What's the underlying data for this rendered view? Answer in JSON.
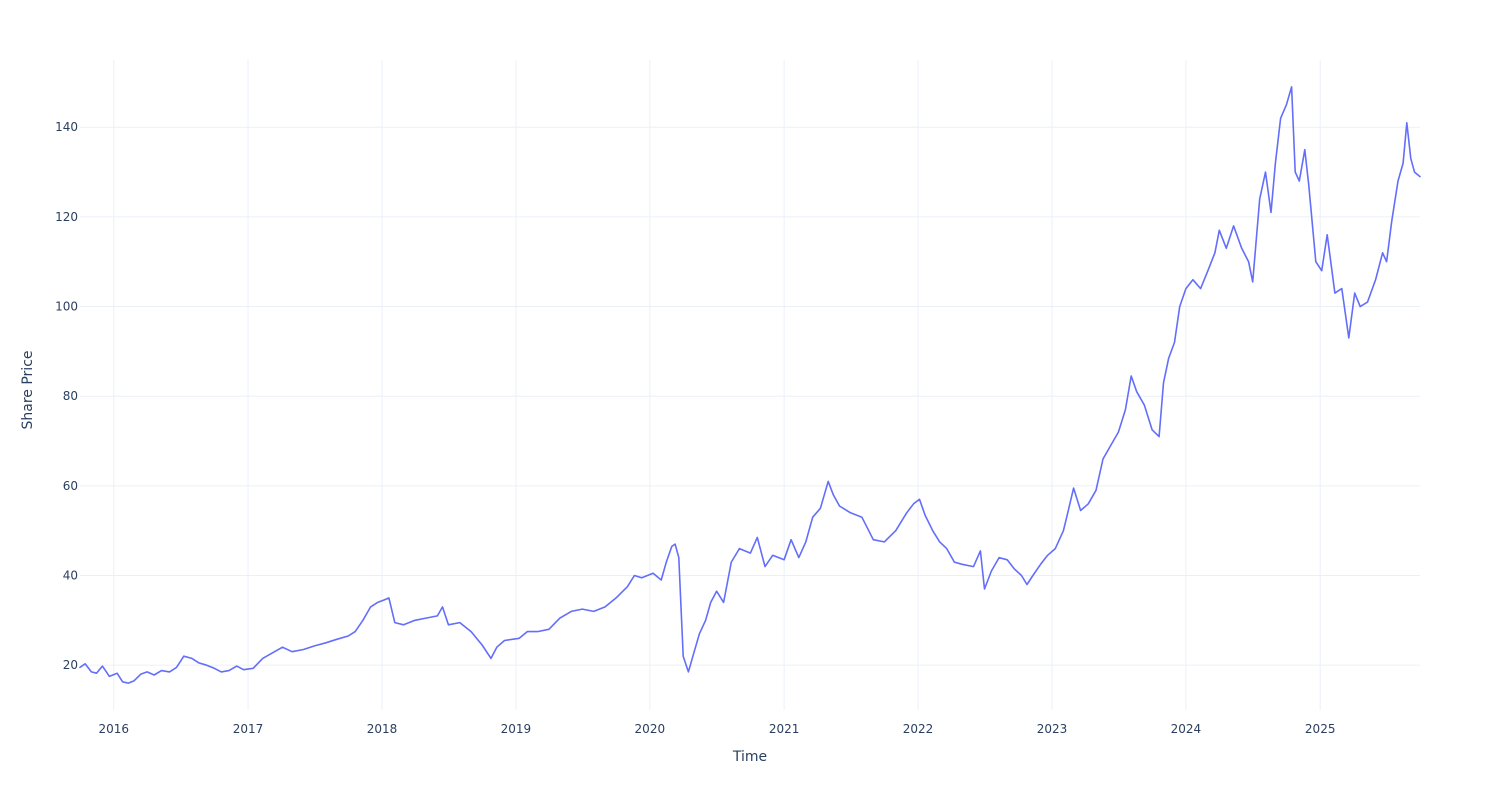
{
  "chart_data": {
    "type": "line",
    "title": "",
    "xlabel": "Time",
    "ylabel": "Share Price",
    "grid": true,
    "legend": "none",
    "line_color": "#636efa",
    "xlim": [
      "2015-10-01",
      "2025-09-30"
    ],
    "ylim": [
      10,
      155
    ],
    "y_ticks": [
      20,
      40,
      60,
      80,
      100,
      120,
      140
    ],
    "x_ticks": [
      {
        "date": "2016-01-01",
        "label": "2016"
      },
      {
        "date": "2017-01-01",
        "label": "2017"
      },
      {
        "date": "2018-01-01",
        "label": "2018"
      },
      {
        "date": "2019-01-01",
        "label": "2019"
      },
      {
        "date": "2020-01-01",
        "label": "2020"
      },
      {
        "date": "2021-01-01",
        "label": "2021"
      },
      {
        "date": "2022-01-01",
        "label": "2022"
      },
      {
        "date": "2023-01-01",
        "label": "2023"
      },
      {
        "date": "2024-01-01",
        "label": "2024"
      },
      {
        "date": "2025-01-01",
        "label": "2025"
      }
    ],
    "series": [
      {
        "x": [
          "2015-10-01",
          "2015-10-15",
          "2015-11-01",
          "2015-11-15",
          "2015-12-01",
          "2015-12-20",
          "2016-01-10",
          "2016-01-25",
          "2016-02-10",
          "2016-02-25",
          "2016-03-15",
          "2016-04-01",
          "2016-04-20",
          "2016-05-10",
          "2016-06-01",
          "2016-06-20",
          "2016-07-10",
          "2016-08-01",
          "2016-08-20",
          "2016-09-10",
          "2016-10-01",
          "2016-10-20",
          "2016-11-10",
          "2016-12-01",
          "2016-12-20",
          "2017-01-15",
          "2017-02-10",
          "2017-03-10",
          "2017-04-05",
          "2017-05-01",
          "2017-06-01",
          "2017-07-01",
          "2017-08-01",
          "2017-09-01",
          "2017-10-01",
          "2017-10-20",
          "2017-11-10",
          "2017-12-01",
          "2017-12-20",
          "2018-01-05",
          "2018-01-20",
          "2018-02-05",
          "2018-03-01",
          "2018-04-01",
          "2018-05-01",
          "2018-06-01",
          "2018-06-15",
          "2018-07-01",
          "2018-08-01",
          "2018-09-01",
          "2018-10-01",
          "2018-10-25",
          "2018-11-10",
          "2018-12-01",
          "2019-01-10",
          "2019-02-01",
          "2019-03-01",
          "2019-04-01",
          "2019-05-01",
          "2019-06-01",
          "2019-07-01",
          "2019-08-01",
          "2019-09-01",
          "2019-10-01",
          "2019-11-01",
          "2019-11-20",
          "2019-12-10",
          "2020-01-10",
          "2020-02-01",
          "2020-02-15",
          "2020-03-01",
          "2020-03-10",
          "2020-03-20",
          "2020-04-01",
          "2020-04-15",
          "2020-05-01",
          "2020-05-15",
          "2020-06-01",
          "2020-06-15",
          "2020-07-01",
          "2020-07-20",
          "2020-08-10",
          "2020-09-01",
          "2020-10-01",
          "2020-10-20",
          "2020-11-10",
          "2020-12-01",
          "2021-01-01",
          "2021-01-20",
          "2021-02-10",
          "2021-03-01",
          "2021-03-20",
          "2021-04-10",
          "2021-05-01",
          "2021-05-15",
          "2021-06-01",
          "2021-07-01",
          "2021-08-01",
          "2021-09-01",
          "2021-10-01",
          "2021-11-01",
          "2021-12-01",
          "2021-12-20",
          "2022-01-05",
          "2022-01-20",
          "2022-02-10",
          "2022-03-01",
          "2022-03-20",
          "2022-04-10",
          "2022-05-01",
          "2022-06-01",
          "2022-06-20",
          "2022-07-01",
          "2022-07-20",
          "2022-08-10",
          "2022-09-01",
          "2022-09-20",
          "2022-10-10",
          "2022-10-25",
          "2022-11-10",
          "2022-12-01",
          "2022-12-20",
          "2023-01-10",
          "2023-02-01",
          "2023-02-10",
          "2023-03-01",
          "2023-03-20",
          "2023-04-10",
          "2023-05-01",
          "2023-05-20",
          "2023-06-10",
          "2023-07-01",
          "2023-07-20",
          "2023-08-05",
          "2023-08-20",
          "2023-09-10",
          "2023-10-01",
          "2023-10-20",
          "2023-11-01",
          "2023-11-15",
          "2023-12-01",
          "2023-12-15",
          "2024-01-01",
          "2024-01-20",
          "2024-02-10",
          "2024-03-01",
          "2024-03-20",
          "2024-04-01",
          "2024-04-20",
          "2024-05-10",
          "2024-06-01",
          "2024-06-20",
          "2024-07-01",
          "2024-07-20",
          "2024-08-05",
          "2024-08-20",
          "2024-09-01",
          "2024-09-15",
          "2024-10-01",
          "2024-10-15",
          "2024-10-25",
          "2024-11-05",
          "2024-11-20",
          "2024-12-01",
          "2024-12-20",
          "2025-01-05",
          "2025-01-20",
          "2025-02-10",
          "2025-03-01",
          "2025-03-20",
          "2025-04-05",
          "2025-04-20",
          "2025-05-10",
          "2025-06-01",
          "2025-06-20",
          "2025-07-01",
          "2025-07-15",
          "2025-08-01",
          "2025-08-15",
          "2025-08-25",
          "2025-09-05",
          "2025-09-15",
          "2025-09-30"
        ],
        "y": [
          19.5,
          20.3,
          18.5,
          18.2,
          19.8,
          17.5,
          18.2,
          16.3,
          16.0,
          16.5,
          18.0,
          18.5,
          17.8,
          18.8,
          18.5,
          19.5,
          22.0,
          21.5,
          20.5,
          20.0,
          19.3,
          18.5,
          18.8,
          19.8,
          19.0,
          19.3,
          21.5,
          22.8,
          24.0,
          23.0,
          23.5,
          24.3,
          25.0,
          25.8,
          26.5,
          27.5,
          30.0,
          33.0,
          34.0,
          34.5,
          35.0,
          29.5,
          29.0,
          30.0,
          30.5,
          31.0,
          33.0,
          29.0,
          29.5,
          27.5,
          24.5,
          21.5,
          24.0,
          25.5,
          26.0,
          27.5,
          27.5,
          28.0,
          30.5,
          32.0,
          32.5,
          32.0,
          33.0,
          35.0,
          37.5,
          40.0,
          39.5,
          40.5,
          39.0,
          43.0,
          46.5,
          47.0,
          44.0,
          22.0,
          18.5,
          23.0,
          27.0,
          30.0,
          34.0,
          36.5,
          34.0,
          43.0,
          46.0,
          45.0,
          48.5,
          42.0,
          44.5,
          43.5,
          48.0,
          44.0,
          47.5,
          53.0,
          55.0,
          61.0,
          58.0,
          55.5,
          54.0,
          53.0,
          48.0,
          47.5,
          50.0,
          54.0,
          56.0,
          57.0,
          53.5,
          50.0,
          47.5,
          46.0,
          43.0,
          42.5,
          42.0,
          45.5,
          37.0,
          41.0,
          44.0,
          43.5,
          41.5,
          40.0,
          38.0,
          40.0,
          42.5,
          44.5,
          46.0,
          50.0,
          53.0,
          59.5,
          54.5,
          56.0,
          59.0,
          66.0,
          69.0,
          72.0,
          77.0,
          84.5,
          81.0,
          78.0,
          72.5,
          71.0,
          83.0,
          88.5,
          92.0,
          100.0,
          104.0,
          106.0,
          104.0,
          108.0,
          112.0,
          117.0,
          113.0,
          118.0,
          113.0,
          110.0,
          105.5,
          124.0,
          130.0,
          121.0,
          132.0,
          142.0,
          145.0,
          149.0,
          130.0,
          128.0,
          135.0,
          127.0,
          110.0,
          108.0,
          116.0,
          103.0,
          104.0,
          93.0,
          103.0,
          100.0,
          101.0,
          106.0,
          112.0,
          110.0,
          119.0,
          128.0,
          132.0,
          141.0,
          133.0,
          130.0,
          129.0
        ]
      }
    ]
  }
}
